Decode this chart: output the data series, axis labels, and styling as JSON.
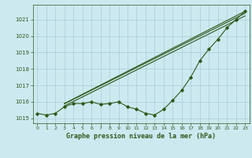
{
  "background_color": "#cce9f0",
  "grid_color": "#aacdd6",
  "line_color": "#2d5a1b",
  "marker_color": "#2d5a1b",
  "title": "Graphe pression niveau de la mer (hPa)",
  "title_fontsize": 6.0,
  "xlim": [
    -0.5,
    23.5
  ],
  "ylim": [
    1014.7,
    1021.9
  ],
  "yticks": [
    1015,
    1016,
    1017,
    1018,
    1019,
    1020,
    1021
  ],
  "xticks": [
    0,
    1,
    2,
    3,
    4,
    5,
    6,
    7,
    8,
    9,
    10,
    11,
    12,
    13,
    14,
    15,
    16,
    17,
    18,
    19,
    20,
    21,
    22,
    23
  ],
  "y_main": [
    1015.3,
    1015.2,
    1015.3,
    1015.7,
    1015.9,
    1015.9,
    1016.0,
    1015.85,
    1015.9,
    1016.0,
    1015.7,
    1015.55,
    1015.3,
    1015.2,
    1015.55,
    1016.1,
    1016.7,
    1017.5,
    1018.5,
    1019.2,
    1019.8,
    1020.5,
    1021.0,
    1021.5
  ],
  "trend_lines": [
    {
      "x": [
        3,
        23
      ],
      "y": [
        1015.9,
        1021.5
      ]
    },
    {
      "x": [
        3,
        23
      ],
      "y": [
        1015.88,
        1021.38
      ]
    },
    {
      "x": [
        3,
        23
      ],
      "y": [
        1015.75,
        1021.22
      ]
    }
  ]
}
